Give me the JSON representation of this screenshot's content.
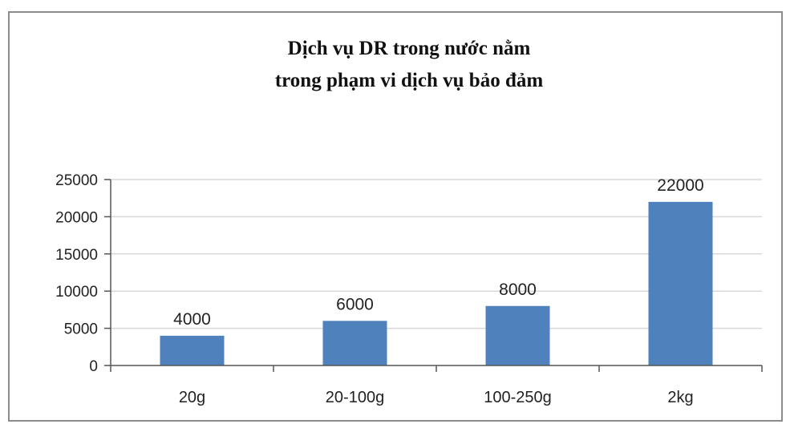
{
  "chart_data": {
    "type": "bar",
    "title_lines": [
      "Dịch vụ DR trong nước nằm",
      "trong phạm vi dịch vụ bảo đảm"
    ],
    "categories": [
      "20g",
      "20-100g",
      "100-250g",
      "2kg"
    ],
    "values": [
      4000,
      6000,
      8000,
      22000
    ],
    "data_labels": [
      "4000",
      "6000",
      "8000",
      "22000"
    ],
    "y_ticks": [
      0,
      5000,
      10000,
      15000,
      20000,
      25000
    ],
    "y_tick_labels": [
      "0",
      "5000",
      "10000",
      "15000",
      "20000",
      "25000"
    ],
    "ylim": [
      0,
      25000
    ],
    "xlabel": "",
    "ylabel": "",
    "grid": true,
    "legend": "none",
    "bar_color": "#4f81bd",
    "grid_color": "#d9d9d9"
  }
}
